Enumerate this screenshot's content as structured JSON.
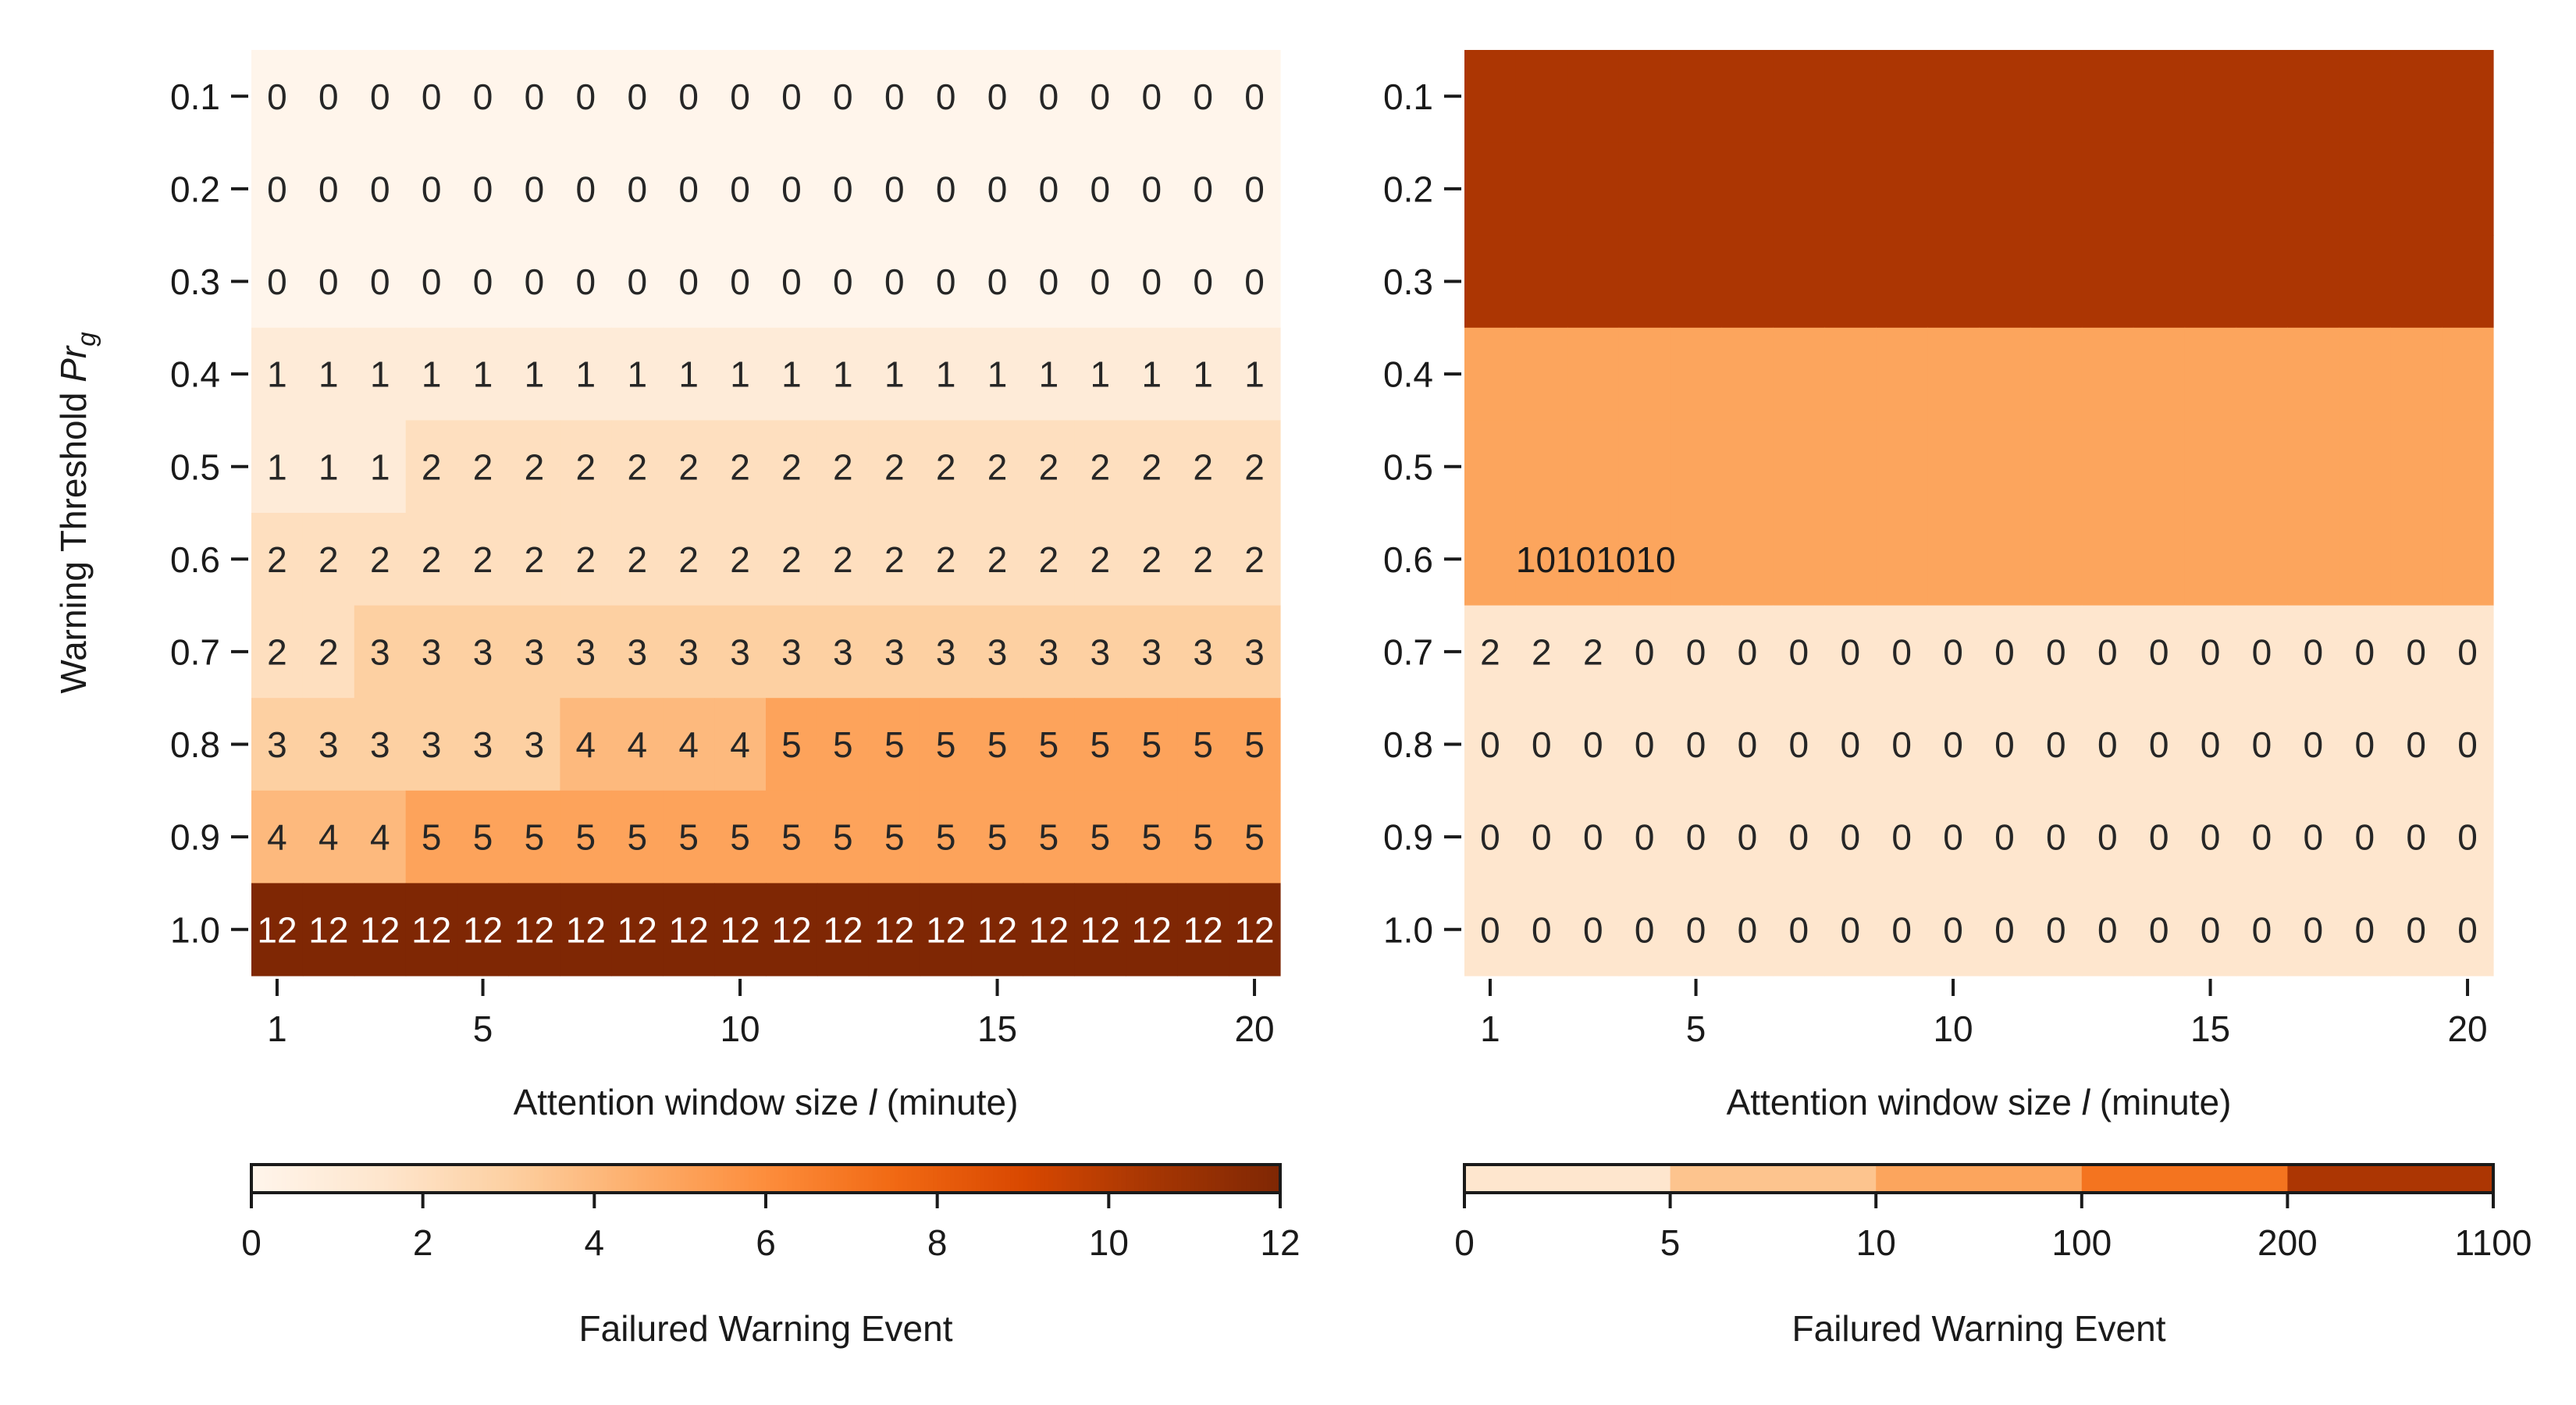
{
  "chart_data": [
    {
      "type": "heatmap",
      "title": "",
      "xlabel_parts": [
        "Attention window size ",
        "l",
        " (minute)"
      ],
      "ylabel_parts": [
        "Warning Threshold ",
        "Pr",
        "g"
      ],
      "x": [
        1,
        2,
        3,
        4,
        5,
        6,
        7,
        8,
        9,
        10,
        11,
        12,
        13,
        14,
        15,
        16,
        17,
        18,
        19,
        20
      ],
      "x_ticks": [
        "1",
        "5",
        "10",
        "15",
        "20"
      ],
      "y": [
        "0.1",
        "0.2",
        "0.3",
        "0.4",
        "0.5",
        "0.6",
        "0.7",
        "0.8",
        "0.9",
        "1.0"
      ],
      "annotate_all_cells": true,
      "values": [
        [
          0,
          0,
          0,
          0,
          0,
          0,
          0,
          0,
          0,
          0,
          0,
          0,
          0,
          0,
          0,
          0,
          0,
          0,
          0,
          0
        ],
        [
          0,
          0,
          0,
          0,
          0,
          0,
          0,
          0,
          0,
          0,
          0,
          0,
          0,
          0,
          0,
          0,
          0,
          0,
          0,
          0
        ],
        [
          0,
          0,
          0,
          0,
          0,
          0,
          0,
          0,
          0,
          0,
          0,
          0,
          0,
          0,
          0,
          0,
          0,
          0,
          0,
          0
        ],
        [
          1,
          1,
          1,
          1,
          1,
          1,
          1,
          1,
          1,
          1,
          1,
          1,
          1,
          1,
          1,
          1,
          1,
          1,
          1,
          1
        ],
        [
          1,
          1,
          1,
          2,
          2,
          2,
          2,
          2,
          2,
          2,
          2,
          2,
          2,
          2,
          2,
          2,
          2,
          2,
          2,
          2
        ],
        [
          2,
          2,
          2,
          2,
          2,
          2,
          2,
          2,
          2,
          2,
          2,
          2,
          2,
          2,
          2,
          2,
          2,
          2,
          2,
          2
        ],
        [
          2,
          2,
          3,
          3,
          3,
          3,
          3,
          3,
          3,
          3,
          3,
          3,
          3,
          3,
          3,
          3,
          3,
          3,
          3,
          3
        ],
        [
          3,
          3,
          3,
          3,
          3,
          3,
          4,
          4,
          4,
          4,
          5,
          5,
          5,
          5,
          5,
          5,
          5,
          5,
          5,
          5
        ],
        [
          4,
          4,
          4,
          5,
          5,
          5,
          5,
          5,
          5,
          5,
          5,
          5,
          5,
          5,
          5,
          5,
          5,
          5,
          5,
          5
        ],
        [
          12,
          12,
          12,
          12,
          12,
          12,
          12,
          12,
          12,
          12,
          12,
          12,
          12,
          12,
          12,
          12,
          12,
          12,
          12,
          12
        ]
      ],
      "colorbar": {
        "label": "Failured Warning Event",
        "type": "continuous",
        "range": [
          0,
          12
        ],
        "ticks": [
          "0",
          "2",
          "4",
          "6",
          "8",
          "10",
          "12"
        ],
        "colors": [
          "#fff5eb",
          "#fee6ce",
          "#fdd0a2",
          "#fdae6b",
          "#fd8d3c",
          "#f16913",
          "#d94801",
          "#a63603",
          "#7f2704"
        ]
      }
    },
    {
      "type": "heatmap",
      "title": "",
      "xlabel_parts": [
        "Attention window size ",
        "l",
        " (minute)"
      ],
      "x": [
        1,
        2,
        3,
        4,
        5,
        6,
        7,
        8,
        9,
        10,
        11,
        12,
        13,
        14,
        15,
        16,
        17,
        18,
        19,
        20
      ],
      "x_ticks": [
        "1",
        "5",
        "10",
        "15",
        "20"
      ],
      "y": [
        "0.1",
        "0.2",
        "0.3",
        "0.4",
        "0.5",
        "0.6",
        "0.7",
        "0.8",
        "0.9",
        "1.0"
      ],
      "annotated_rows": [
        6,
        7,
        8,
        9
      ],
      "values": [
        [
          1100,
          1100,
          1100,
          1100,
          1100,
          1100,
          1100,
          1100,
          1100,
          1100,
          1100,
          1100,
          1100,
          1100,
          1100,
          1100,
          1100,
          1100,
          1100,
          1100
        ],
        [
          1100,
          1100,
          1100,
          1100,
          1100,
          1100,
          1100,
          1100,
          1100,
          1100,
          1100,
          1100,
          1100,
          1100,
          1100,
          1100,
          1100,
          1100,
          1100,
          1100
        ],
        [
          1100,
          1100,
          1100,
          1100,
          1100,
          1100,
          1100,
          1100,
          1100,
          1100,
          1100,
          1100,
          1100,
          1100,
          1100,
          1100,
          1100,
          1100,
          1100,
          1100
        ],
        [
          10,
          10,
          10,
          10,
          10,
          10,
          10,
          10,
          10,
          10,
          10,
          10,
          10,
          10,
          10,
          10,
          10,
          10,
          10,
          10
        ],
        [
          10,
          10,
          10,
          10,
          10,
          10,
          10,
          10,
          10,
          10,
          10,
          10,
          10,
          10,
          10,
          10,
          10,
          10,
          10,
          10
        ],
        [
          10,
          10,
          10,
          10,
          10,
          10,
          10,
          10,
          10,
          10,
          10,
          10,
          10,
          10,
          10,
          10,
          10,
          10,
          10,
          10
        ],
        [
          2,
          2,
          2,
          0,
          0,
          0,
          0,
          0,
          0,
          0,
          0,
          0,
          0,
          0,
          0,
          0,
          0,
          0,
          0,
          0
        ],
        [
          0,
          0,
          0,
          0,
          0,
          0,
          0,
          0,
          0,
          0,
          0,
          0,
          0,
          0,
          0,
          0,
          0,
          0,
          0,
          0
        ],
        [
          0,
          0,
          0,
          0,
          0,
          0,
          0,
          0,
          0,
          0,
          0,
          0,
          0,
          0,
          0,
          0,
          0,
          0,
          0,
          0
        ],
        [
          0,
          0,
          0,
          0,
          0,
          0,
          0,
          0,
          0,
          0,
          0,
          0,
          0,
          0,
          0,
          0,
          0,
          0,
          0,
          0
        ]
      ],
      "overlay_text": "10101010",
      "colorbar": {
        "label": "Failured Warning Event",
        "type": "discrete",
        "bounds": [
          0,
          5,
          10,
          100,
          200,
          1100
        ],
        "ticks": [
          "0",
          "5",
          "10",
          "100",
          "200",
          "1100"
        ],
        "colors": [
          "#fee6ce",
          "#fdc48e",
          "#fca55d",
          "#f4741f",
          "#ac3603"
        ]
      }
    }
  ]
}
